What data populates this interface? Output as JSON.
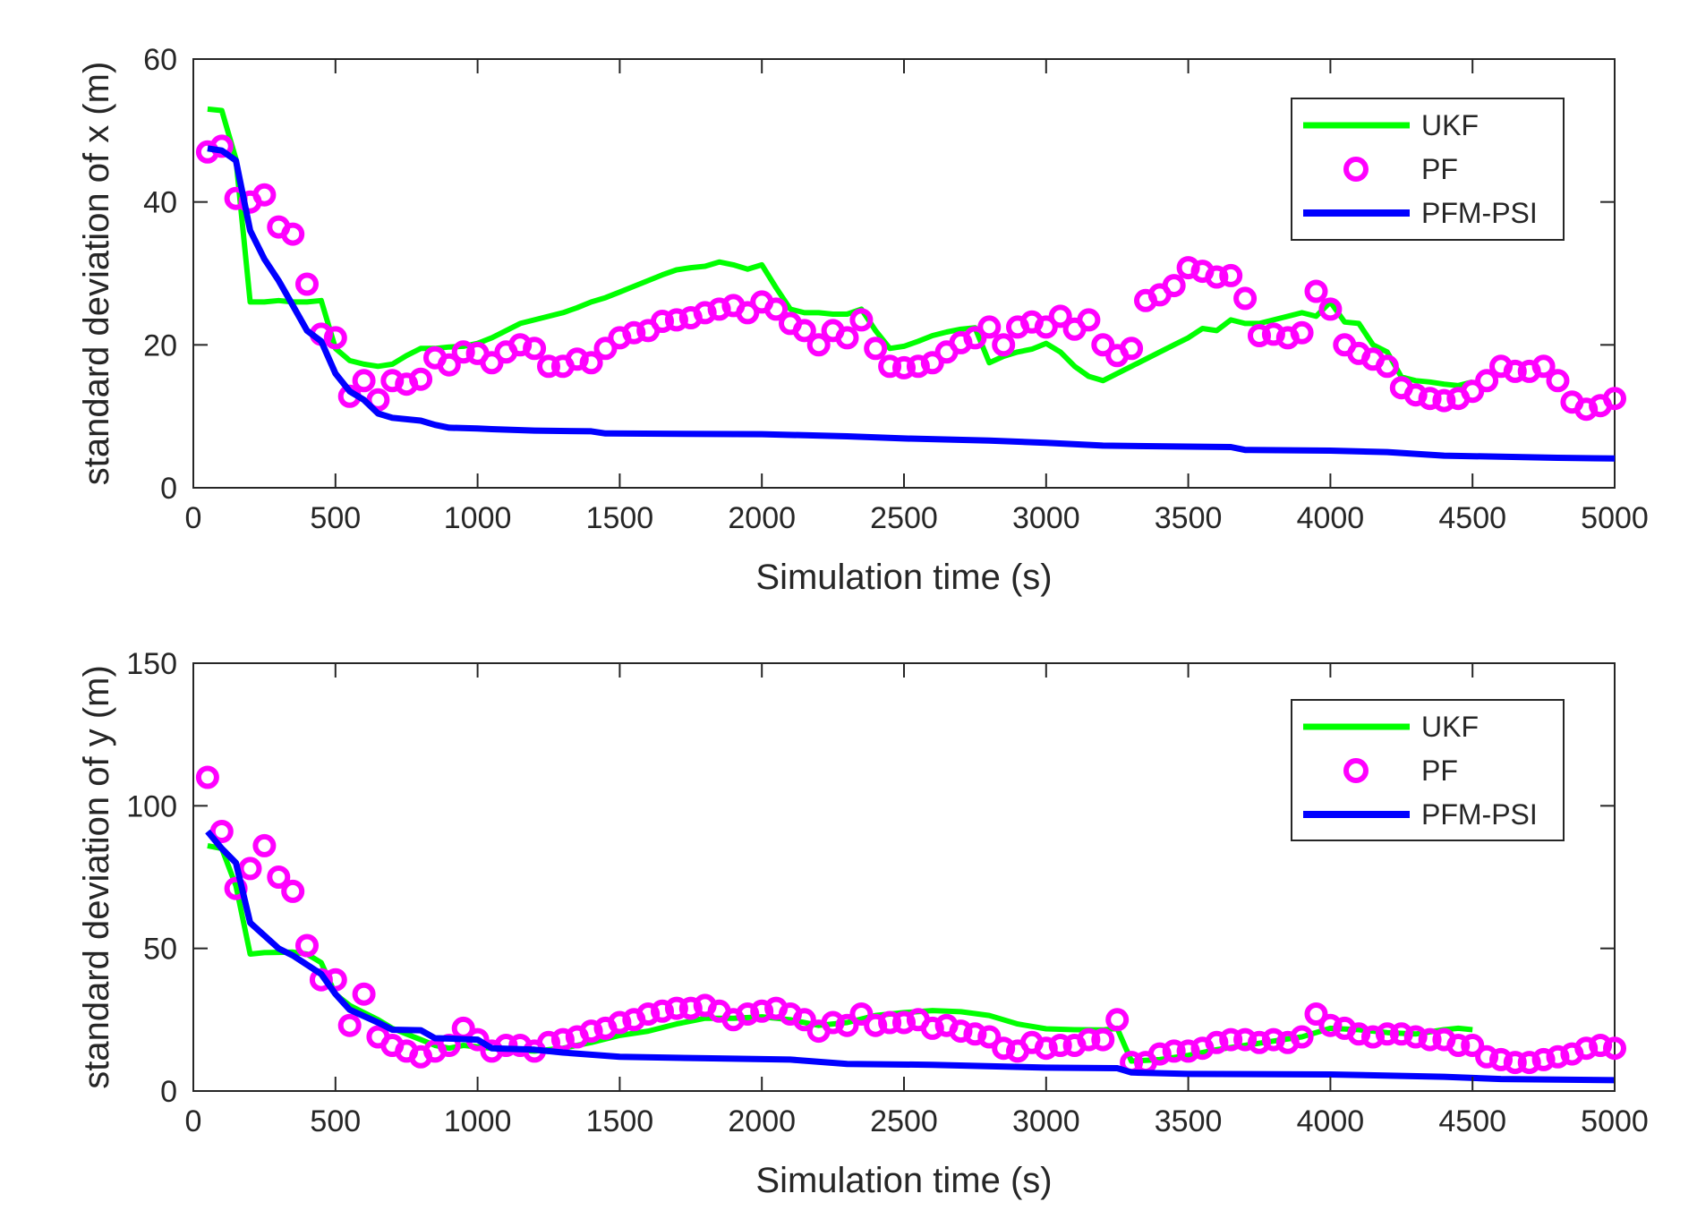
{
  "colors": {
    "ukf": "#00ff00",
    "pf": "#ff00ff",
    "pfm_psi": "#0000ff",
    "axis": "#262626",
    "background": "#ffffff"
  },
  "chart_data": [
    {
      "type": "line",
      "id": "x",
      "title": "",
      "xlabel": "Simulation time (s)",
      "ylabel": "standard deviation of x (m)",
      "xlim": [
        0,
        5000
      ],
      "ylim": [
        0,
        60
      ],
      "xticks": [
        0,
        500,
        1000,
        1500,
        2000,
        2500,
        3000,
        3500,
        4000,
        4500,
        5000
      ],
      "yticks": [
        0,
        20,
        40,
        60
      ],
      "grid": false,
      "legend_position": "top-right",
      "series": [
        {
          "name": "UKF",
          "style": "line",
          "color": "#00ff00",
          "x": [
            50,
            100,
            150,
            200,
            250,
            300,
            350,
            400,
            450,
            500,
            550,
            600,
            650,
            700,
            750,
            800,
            850,
            900,
            950,
            1000,
            1050,
            1100,
            1150,
            1200,
            1250,
            1300,
            1350,
            1400,
            1450,
            1500,
            1550,
            1600,
            1650,
            1700,
            1750,
            1800,
            1850,
            1900,
            1950,
            2000,
            2050,
            2100,
            2150,
            2200,
            2250,
            2300,
            2350,
            2400,
            2450,
            2500,
            2550,
            2600,
            2650,
            2700,
            2750,
            2800,
            2850,
            2900,
            2950,
            3000,
            3050,
            3100,
            3150,
            3200,
            3250,
            3300,
            3350,
            3400,
            3450,
            3500,
            3550,
            3600,
            3650,
            3700,
            3750,
            3800,
            3850,
            3900,
            3950,
            4000,
            4050,
            4100,
            4150,
            4200,
            4250,
            4300,
            4350,
            4400,
            4450,
            4500
          ],
          "y": [
            53,
            52.8,
            46,
            26,
            26,
            26.2,
            26,
            26,
            26.2,
            19.5,
            17.8,
            17.3,
            17,
            17.3,
            18.5,
            19.5,
            19.5,
            19.7,
            19.8,
            20.2,
            21,
            22,
            23,
            23.5,
            24,
            24.5,
            25.2,
            26,
            26.6,
            27.4,
            28.2,
            29,
            29.8,
            30.5,
            30.8,
            31,
            31.6,
            31.2,
            30.6,
            31.2,
            28,
            25,
            24.5,
            24.5,
            24.3,
            24.3,
            25,
            22,
            19.5,
            19.8,
            20.5,
            21.3,
            21.8,
            22.2,
            22.4,
            17.5,
            18.4,
            19,
            19.4,
            20.2,
            19,
            17,
            15.6,
            15,
            16,
            17,
            18,
            19,
            20,
            21,
            22.3,
            22,
            23.5,
            23,
            23,
            23.5,
            24,
            24.5,
            24,
            26,
            23.2,
            23,
            20,
            19,
            15.5,
            15,
            14.8,
            14.5,
            14.3,
            14.8
          ]
        },
        {
          "name": "PF",
          "style": "markers",
          "marker": "circle",
          "color": "#ff00ff",
          "x": [
            50,
            100,
            150,
            200,
            250,
            300,
            350,
            400,
            450,
            500,
            550,
            600,
            650,
            700,
            750,
            800,
            850,
            900,
            950,
            1000,
            1050,
            1100,
            1150,
            1200,
            1250,
            1300,
            1350,
            1400,
            1450,
            1500,
            1550,
            1600,
            1650,
            1700,
            1750,
            1800,
            1850,
            1900,
            1950,
            2000,
            2050,
            2100,
            2150,
            2200,
            2250,
            2300,
            2350,
            2400,
            2450,
            2500,
            2550,
            2600,
            2650,
            2700,
            2750,
            2800,
            2850,
            2900,
            2950,
            3000,
            3050,
            3100,
            3150,
            3200,
            3250,
            3300,
            3350,
            3400,
            3450,
            3500,
            3550,
            3600,
            3650,
            3700,
            3750,
            3800,
            3850,
            3900,
            3950,
            4000,
            4050,
            4100,
            4150,
            4200,
            4250,
            4300,
            4350,
            4400,
            4450,
            4500,
            4550,
            4600,
            4650,
            4700,
            4750,
            4800,
            4850,
            4900,
            4950,
            5000
          ],
          "y": [
            47,
            47.8,
            40.5,
            40,
            41,
            36.5,
            35.5,
            28.5,
            21.5,
            21,
            12.8,
            15,
            12.3,
            15,
            14.5,
            15.2,
            18.2,
            17.2,
            19,
            18.8,
            17.5,
            19,
            20,
            19.5,
            17,
            17,
            18,
            17.5,
            19.5,
            21,
            21.7,
            22,
            23.3,
            23.5,
            23.8,
            24.5,
            25,
            25.5,
            24.5,
            26,
            25,
            23,
            22,
            20,
            22,
            21,
            23.5,
            19.5,
            17,
            16.8,
            17,
            17.5,
            19,
            20.3,
            21,
            22.5,
            20,
            22.5,
            23.2,
            22.5,
            24,
            22.2,
            23.5,
            20,
            18.5,
            19.5,
            26.2,
            27,
            28.3,
            30.8,
            30.3,
            29.5,
            29.7,
            26.5,
            21.3,
            21.5,
            21,
            21.7,
            27.5,
            25,
            20,
            18.8,
            18,
            17,
            14,
            13,
            12.5,
            12.2,
            12.5,
            13.5,
            15,
            17,
            16.3,
            16.3,
            17,
            15,
            12,
            11,
            11.5,
            12.5
          ]
        },
        {
          "name": "PFM-PSI",
          "style": "line",
          "color": "#0000ff",
          "x": [
            50,
            100,
            150,
            200,
            250,
            300,
            350,
            400,
            450,
            500,
            550,
            600,
            650,
            700,
            800,
            850,
            900,
            1000,
            1050,
            1200,
            1400,
            1450,
            2000,
            2300,
            2500,
            2800,
            3000,
            3200,
            3650,
            3700,
            4000,
            4200,
            4400,
            4800,
            5000
          ],
          "y": [
            47.5,
            47.2,
            45.8,
            36,
            32,
            29,
            25.5,
            22,
            20.5,
            16,
            13.5,
            12.3,
            10.4,
            9.8,
            9.4,
            8.8,
            8.4,
            8.3,
            8.2,
            8,
            7.9,
            7.6,
            7.5,
            7.2,
            6.9,
            6.6,
            6.3,
            5.9,
            5.7,
            5.3,
            5.2,
            5,
            4.5,
            4.2,
            4.1
          ]
        }
      ],
      "legend": [
        "UKF",
        "PF",
        "PFM-PSI"
      ]
    },
    {
      "type": "line",
      "id": "y",
      "title": "",
      "xlabel": "Simulation time (s)",
      "ylabel": "standard deviation of y (m)",
      "xlim": [
        0,
        5000
      ],
      "ylim": [
        0,
        150
      ],
      "xticks": [
        0,
        500,
        1000,
        1500,
        2000,
        2500,
        3000,
        3500,
        4000,
        4500,
        5000
      ],
      "yticks": [
        0,
        50,
        100,
        150
      ],
      "grid": false,
      "legend_position": "top-right",
      "series": [
        {
          "name": "UKF",
          "style": "line",
          "color": "#00ff00",
          "x": [
            50,
            100,
            150,
            200,
            250,
            300,
            350,
            400,
            450,
            500,
            550,
            600,
            650,
            700,
            750,
            800,
            850,
            900,
            950,
            1000,
            1100,
            1200,
            1300,
            1400,
            1500,
            1600,
            1700,
            1800,
            1900,
            2000,
            2100,
            2200,
            2300,
            2400,
            2500,
            2600,
            2700,
            2800,
            2900,
            3000,
            3100,
            3200,
            3250,
            3300,
            3400,
            3500,
            3600,
            3700,
            3800,
            3900,
            4000,
            4100,
            4200,
            4300,
            4400,
            4450,
            4500
          ],
          "y": [
            86,
            85,
            72,
            48,
            48.5,
            48.6,
            48.7,
            48,
            45,
            34,
            30,
            27.5,
            25,
            22,
            20,
            18,
            16,
            15,
            16,
            15.5,
            14.5,
            14,
            15,
            17,
            19.5,
            21,
            23.5,
            25.5,
            25.5,
            26,
            25,
            23,
            24,
            26.5,
            27.5,
            28.2,
            27.8,
            26.5,
            23.5,
            21.8,
            21.5,
            21.4,
            22,
            10.5,
            11,
            12.5,
            14.5,
            16,
            17.5,
            19,
            22,
            21.5,
            20.5,
            20,
            21.5,
            22,
            21.5
          ]
        },
        {
          "name": "PF",
          "style": "markers",
          "marker": "circle",
          "color": "#ff00ff",
          "x": [
            50,
            100,
            150,
            200,
            250,
            300,
            350,
            400,
            450,
            500,
            550,
            600,
            650,
            700,
            750,
            800,
            850,
            900,
            950,
            1000,
            1050,
            1100,
            1150,
            1200,
            1250,
            1300,
            1350,
            1400,
            1450,
            1500,
            1550,
            1600,
            1650,
            1700,
            1750,
            1800,
            1850,
            1900,
            1950,
            2000,
            2050,
            2100,
            2150,
            2200,
            2250,
            2300,
            2350,
            2400,
            2450,
            2500,
            2550,
            2600,
            2650,
            2700,
            2750,
            2800,
            2850,
            2900,
            2950,
            3000,
            3050,
            3100,
            3150,
            3200,
            3250,
            3300,
            3350,
            3400,
            3450,
            3500,
            3550,
            3600,
            3650,
            3700,
            3750,
            3800,
            3850,
            3900,
            3950,
            4000,
            4050,
            4100,
            4150,
            4200,
            4250,
            4300,
            4350,
            4400,
            4450,
            4500,
            4550,
            4600,
            4650,
            4700,
            4750,
            4800,
            4850,
            4900,
            4950,
            5000
          ],
          "y": [
            110,
            91,
            71,
            78,
            86,
            75,
            70,
            51,
            39,
            39,
            23,
            34,
            19,
            16,
            14,
            12,
            14,
            16,
            22,
            18,
            14,
            16,
            16,
            14,
            17,
            18,
            19,
            21,
            22,
            24,
            25,
            27,
            28,
            29,
            29,
            30,
            28,
            25,
            27,
            28,
            29,
            27,
            25,
            21,
            24,
            23,
            27,
            23,
            24,
            24,
            25,
            22,
            23,
            21,
            20,
            19,
            15,
            14,
            17,
            15,
            16,
            16,
            18,
            18,
            25,
            10,
            10,
            13,
            14,
            14,
            15,
            17,
            18,
            18,
            17,
            18,
            17,
            19,
            27,
            23,
            22,
            20,
            19,
            20,
            20,
            19,
            18,
            18,
            16,
            16,
            12,
            11,
            10,
            10,
            11,
            12,
            13,
            15,
            16,
            15
          ]
        },
        {
          "name": "PFM-PSI",
          "style": "line",
          "color": "#0000ff",
          "x": [
            50,
            100,
            150,
            200,
            300,
            350,
            450,
            500,
            550,
            650,
            700,
            800,
            850,
            900,
            1000,
            1050,
            1200,
            1300,
            1500,
            1800,
            2100,
            2300,
            2600,
            3000,
            3250,
            3300,
            3500,
            4000,
            4400,
            4600,
            5000
          ],
          "y": [
            91,
            85,
            80,
            59,
            50,
            47.5,
            41,
            34,
            28.5,
            24,
            21.5,
            21.3,
            18.5,
            18.4,
            18,
            15,
            14.5,
            13.5,
            12,
            11.5,
            11,
            9.5,
            9.2,
            8.2,
            8,
            6.5,
            6,
            5.8,
            5,
            4.2,
            3.8
          ]
        }
      ],
      "legend": [
        "UKF",
        "PF",
        "PFM-PSI"
      ]
    }
  ]
}
